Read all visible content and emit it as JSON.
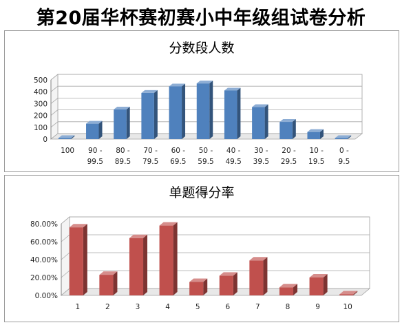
{
  "page": {
    "title": "第20届华杯赛初赛小中年级组试卷分析"
  },
  "chart_data": [
    {
      "type": "bar",
      "title": "分数段人数",
      "categories": [
        "100",
        "90 - 99.5",
        "80 - 89.5",
        "70 - 79.5",
        "60 - 69.5",
        "50 - 59.5",
        "40 - 49.5",
        "30 - 39.5",
        "20 - 29.5",
        "10 - 19.5",
        "0 - 9.5"
      ],
      "values": [
        8,
        130,
        250,
        390,
        445,
        470,
        410,
        270,
        145,
        60,
        8
      ],
      "ylim": [
        0,
        500
      ],
      "yticks": [
        0,
        100,
        200,
        300,
        400,
        500
      ],
      "ytick_labels": [
        "0",
        "100",
        "200",
        "300",
        "400",
        "500"
      ],
      "grid": true,
      "color": "#4f81bd",
      "style": "3d"
    },
    {
      "type": "bar",
      "title": "单题得分率",
      "categories": [
        "1",
        "2",
        "3",
        "4",
        "5",
        "6",
        "7",
        "8",
        "9",
        "10"
      ],
      "values": [
        0.76,
        0.23,
        0.64,
        0.78,
        0.15,
        0.22,
        0.39,
        0.09,
        0.2,
        0.005
      ],
      "ylim": [
        0,
        0.8
      ],
      "yticks": [
        0,
        0.2,
        0.4,
        0.6,
        0.8
      ],
      "ytick_labels": [
        "0.00%",
        "20.00%",
        "40.00%",
        "60.00%",
        "80.00%"
      ],
      "grid": true,
      "color": "#c0504d",
      "style": "3d"
    }
  ]
}
